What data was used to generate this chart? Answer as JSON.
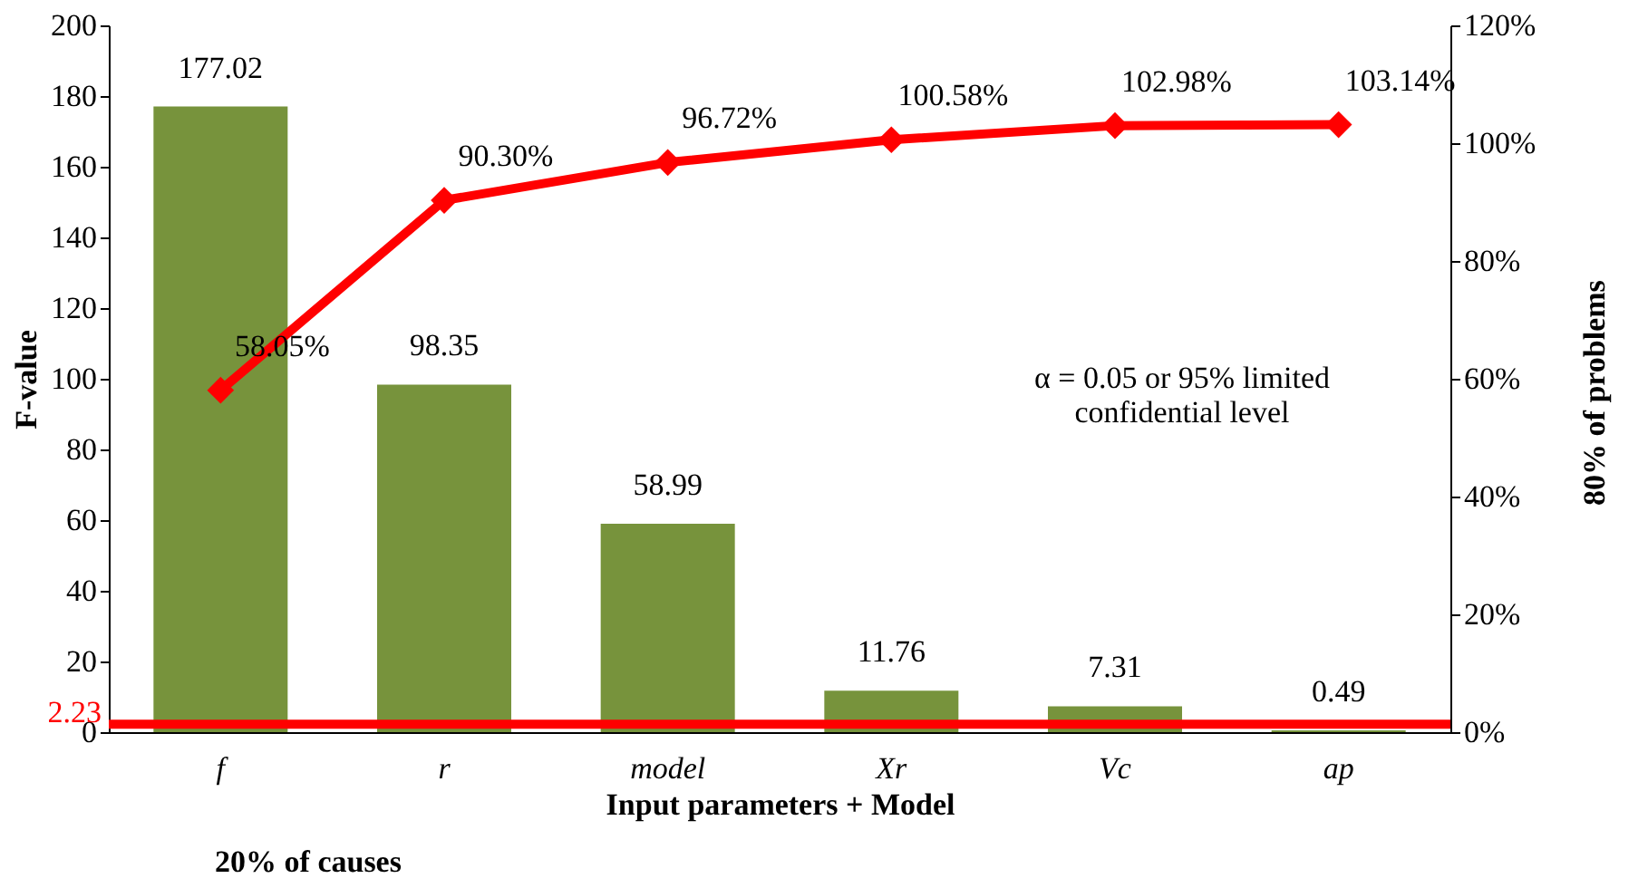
{
  "chart_data": {
    "type": "bar",
    "xlabel": "Input parameters + Model",
    "ylabel": "F-value",
    "categories": [
      "f",
      "r",
      "model",
      "Xr",
      "Vc",
      "ap"
    ],
    "series": [
      {
        "color": "#77933c",
        "values": [
          177.02,
          98.35,
          58.99,
          11.76,
          7.31,
          0.49
        ],
        "value_labels": [
          "177.02",
          "98.35",
          "58.99",
          "11.76",
          "7.31",
          "0.49"
        ]
      },
      {
        "type": "line",
        "axis": "y2",
        "color": "#ff0000",
        "marker": "diamond",
        "values": [
          58.05,
          90.3,
          96.72,
          100.58,
          102.98,
          103.14
        ],
        "value_labels": [
          "58.05%",
          "90.30%",
          "96.72%",
          "100.58%",
          "102.98%",
          "103.14%"
        ]
      }
    ],
    "ylim": [
      0,
      200
    ],
    "yticks": [
      0,
      20,
      40,
      60,
      80,
      100,
      120,
      140,
      160,
      180,
      200
    ],
    "y2lim": [
      0,
      120
    ],
    "y2ticks": [
      {
        "value": 0,
        "label": "0%"
      },
      {
        "value": 20,
        "label": "20%"
      },
      {
        "value": 40,
        "label": "40%"
      },
      {
        "value": 60,
        "label": "60%"
      },
      {
        "value": 80,
        "label": "80%"
      },
      {
        "value": 100,
        "label": "100%"
      },
      {
        "value": 120,
        "label": "120%"
      }
    ],
    "ref_lines": [
      {
        "axis": "y",
        "value": 2.23,
        "label": "2.23",
        "color": "#ff0000"
      }
    ],
    "annotations": [
      "α = 0.05 or 95% limited confidential level",
      "20% of causes",
      "80% of problems"
    ],
    "grid": false
  }
}
